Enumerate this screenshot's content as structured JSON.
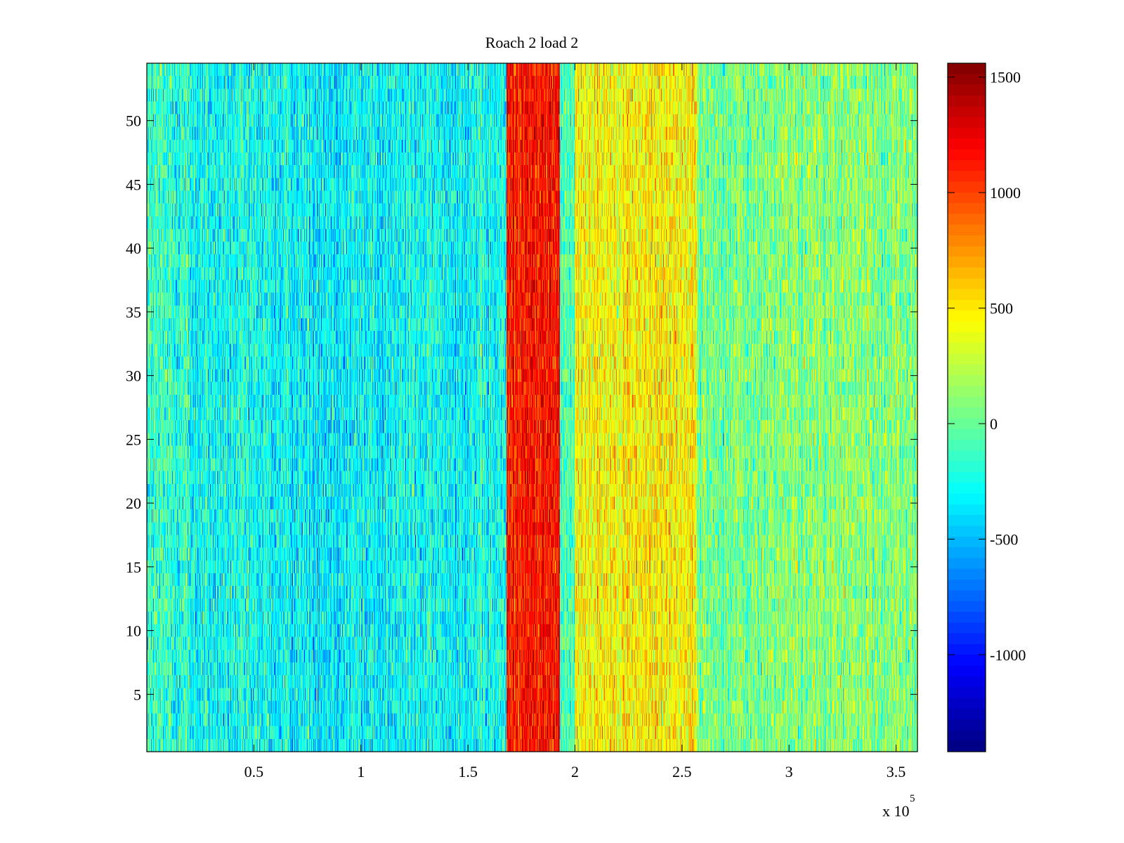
{
  "chart_data": {
    "type": "heatmap",
    "title": "Roach 2 load 2",
    "xlabel": "",
    "ylabel": "",
    "x_multiplier_label": {
      "base": "x 10",
      "exponent": "5"
    },
    "xlim": [
      0,
      360000
    ],
    "ylim": [
      0.5,
      54.5
    ],
    "rows": 54,
    "x_ticks": [
      {
        "value": 50000,
        "label": "0.5"
      },
      {
        "value": 100000,
        "label": "1"
      },
      {
        "value": 150000,
        "label": "1.5"
      },
      {
        "value": 200000,
        "label": "2"
      },
      {
        "value": 250000,
        "label": "2.5"
      },
      {
        "value": 300000,
        "label": "3"
      },
      {
        "value": 350000,
        "label": "3.5"
      }
    ],
    "y_ticks": [
      {
        "value": 5,
        "label": "5"
      },
      {
        "value": 10,
        "label": "10"
      },
      {
        "value": 15,
        "label": "15"
      },
      {
        "value": 20,
        "label": "20"
      },
      {
        "value": 25,
        "label": "25"
      },
      {
        "value": 30,
        "label": "30"
      },
      {
        "value": 35,
        "label": "35"
      },
      {
        "value": 40,
        "label": "40"
      },
      {
        "value": 45,
        "label": "45"
      },
      {
        "value": 50,
        "label": "50"
      }
    ],
    "colorbar": {
      "colormap": "jet",
      "clim": [
        -1420,
        1560
      ],
      "ticks": [
        {
          "value": 1500,
          "label": "1500"
        },
        {
          "value": 1000,
          "label": "1000"
        },
        {
          "value": 500,
          "label": "500"
        },
        {
          "value": 0,
          "label": "0"
        },
        {
          "value": -500,
          "label": "-500"
        },
        {
          "value": -1000,
          "label": "-1000"
        }
      ]
    },
    "column_profile": [
      {
        "x_start": 0,
        "x_end": 20000,
        "mean": -170,
        "noise": 340
      },
      {
        "x_start": 20000,
        "x_end": 60000,
        "mean": -280,
        "noise": 320
      },
      {
        "x_start": 60000,
        "x_end": 120000,
        "mean": -310,
        "noise": 320
      },
      {
        "x_start": 120000,
        "x_end": 168000,
        "mean": -280,
        "noise": 320
      },
      {
        "x_start": 168000,
        "x_end": 193000,
        "mean": 1130,
        "noise": 260
      },
      {
        "x_start": 193000,
        "x_end": 200000,
        "mean": -120,
        "noise": 280
      },
      {
        "x_start": 200000,
        "x_end": 257000,
        "mean": 470,
        "noise": 300
      },
      {
        "x_start": 257000,
        "x_end": 290000,
        "mean": 40,
        "noise": 310
      },
      {
        "x_start": 290000,
        "x_end": 360000,
        "mean": 90,
        "noise": 320
      }
    ]
  }
}
